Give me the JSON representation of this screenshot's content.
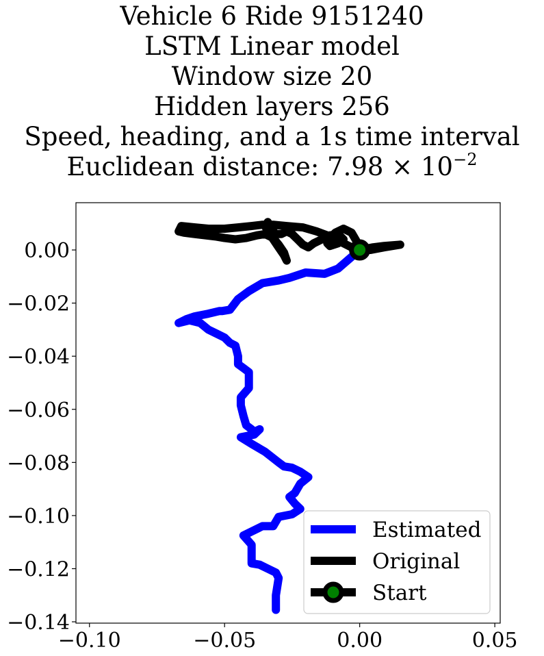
{
  "title": {
    "line1": "Vehicle 6 Ride 9151240",
    "line2": "LSTM Linear model",
    "line3": "Window size 20",
    "line4": "Hidden layers 256",
    "line5": "Speed, heading, and a 1s time interval",
    "line6_prefix": "Euclidean distance: 7.98 × 10",
    "line6_exponent": "−2"
  },
  "chart_data": {
    "type": "line",
    "title": "Vehicle 6 Ride 9151240 / LSTM Linear model / Window size 20 / Hidden layers 256 / Speed, heading, and a 1s time interval / Euclidean distance: 7.98 × 10^−2",
    "xlabel": "",
    "ylabel": "",
    "xlim": [
      -0.105,
      0.052
    ],
    "ylim": [
      -0.1405,
      0.0178
    ],
    "grid": false,
    "x_ticks": [
      {
        "value": -0.1,
        "label": "−0.10"
      },
      {
        "value": -0.05,
        "label": "−0.05"
      },
      {
        "value": 0.0,
        "label": "0.00"
      },
      {
        "value": 0.05,
        "label": "0.05"
      }
    ],
    "y_ticks": [
      {
        "value": 0.0,
        "label": "0.00"
      },
      {
        "value": -0.02,
        "label": "−0.02"
      },
      {
        "value": -0.04,
        "label": "−0.04"
      },
      {
        "value": -0.06,
        "label": "−0.06"
      },
      {
        "value": -0.08,
        "label": "−0.08"
      },
      {
        "value": -0.1,
        "label": "−0.10"
      },
      {
        "value": -0.12,
        "label": "−0.12"
      },
      {
        "value": -0.14,
        "label": "−0.14"
      }
    ],
    "legend_position": "bottom-right",
    "series": [
      {
        "name": "Estimated",
        "color": "#0000ff",
        "x": [
          0.0,
          -0.008,
          -0.013,
          -0.02,
          -0.026,
          -0.03,
          -0.036,
          -0.041,
          -0.045,
          -0.048,
          -0.051,
          -0.052,
          -0.056,
          -0.061,
          -0.064,
          -0.067,
          -0.063,
          -0.059,
          -0.056,
          -0.053,
          -0.05,
          -0.048,
          -0.046,
          -0.045,
          -0.045,
          -0.045,
          -0.043,
          -0.041,
          -0.041,
          -0.044,
          -0.044,
          -0.043,
          -0.042,
          -0.04,
          -0.04,
          -0.039,
          -0.037,
          -0.039,
          -0.044,
          -0.04,
          -0.035,
          -0.03,
          -0.028,
          -0.025,
          -0.022,
          -0.019,
          -0.022,
          -0.024,
          -0.026,
          -0.024,
          -0.022,
          -0.025,
          -0.03,
          -0.032,
          -0.036,
          -0.043,
          -0.04,
          -0.04,
          -0.037,
          -0.034,
          -0.031,
          -0.03,
          -0.031,
          -0.031
        ],
        "y": [
          0.0,
          -0.007,
          -0.009,
          -0.0085,
          -0.0105,
          -0.0115,
          -0.0125,
          -0.0155,
          -0.0185,
          -0.0225,
          -0.023,
          -0.023,
          -0.024,
          -0.025,
          -0.026,
          -0.0275,
          -0.0265,
          -0.0275,
          -0.03,
          -0.0315,
          -0.033,
          -0.035,
          -0.036,
          -0.04,
          -0.043,
          -0.043,
          -0.0445,
          -0.046,
          -0.052,
          -0.0555,
          -0.0585,
          -0.0625,
          -0.066,
          -0.0675,
          -0.068,
          -0.0685,
          -0.0675,
          -0.0695,
          -0.0705,
          -0.073,
          -0.076,
          -0.08,
          -0.0815,
          -0.082,
          -0.0835,
          -0.0855,
          -0.088,
          -0.0915,
          -0.093,
          -0.0955,
          -0.0975,
          -0.0995,
          -0.1005,
          -0.104,
          -0.104,
          -0.1075,
          -0.111,
          -0.118,
          -0.1185,
          -0.12,
          -0.1215,
          -0.1235,
          -0.13,
          -0.1355
        ]
      },
      {
        "name": "Original",
        "color": "#000000",
        "x": [
          0.0,
          0.005,
          0.009,
          0.015,
          0.009,
          0.004,
          0.0,
          -0.002,
          -0.004,
          -0.006,
          -0.009,
          -0.012,
          -0.016,
          -0.021,
          -0.027,
          -0.032,
          -0.036,
          -0.04,
          -0.045,
          -0.05,
          -0.056,
          -0.061,
          -0.066,
          -0.067,
          -0.065,
          -0.061,
          -0.057,
          -0.053,
          -0.05,
          -0.046,
          -0.042,
          -0.038,
          -0.035,
          -0.032,
          -0.03,
          -0.028,
          -0.027,
          -0.028,
          -0.03,
          -0.032,
          -0.034,
          -0.035,
          -0.034,
          -0.033,
          -0.031,
          -0.029,
          -0.027,
          -0.025,
          -0.023,
          -0.021,
          -0.019,
          -0.017,
          -0.014,
          -0.011,
          -0.008,
          -0.006,
          -0.008,
          -0.011,
          -0.012,
          -0.011,
          -0.009,
          -0.006,
          -0.003,
          -0.001,
          0.0
        ],
        "y": [
          0.0,
          0.001,
          0.0015,
          0.002,
          0.001,
          0.0,
          0.0,
          0.0005,
          0.0015,
          0.0025,
          0.004,
          0.0055,
          0.007,
          0.0085,
          0.009,
          0.0095,
          0.0095,
          0.009,
          0.0085,
          0.008,
          0.008,
          0.0085,
          0.009,
          0.007,
          0.0065,
          0.006,
          0.0055,
          0.005,
          0.0045,
          0.004,
          0.0045,
          0.0055,
          0.006,
          0.0045,
          0.002,
          -0.001,
          -0.004,
          -0.002,
          0.001,
          0.004,
          0.007,
          0.009,
          0.0105,
          0.008,
          0.006,
          0.006,
          0.007,
          0.006,
          0.004,
          0.002,
          0.001,
          0.0025,
          0.004,
          0.0055,
          0.006,
          0.004,
          0.0025,
          0.0015,
          0.0025,
          0.0045,
          0.0065,
          0.008,
          0.0065,
          0.003,
          0.0
        ]
      }
    ],
    "start_point": {
      "name": "Start",
      "x": 0.0,
      "y": 0.0,
      "edge_color": "#000000",
      "face_color": "#008000"
    }
  }
}
